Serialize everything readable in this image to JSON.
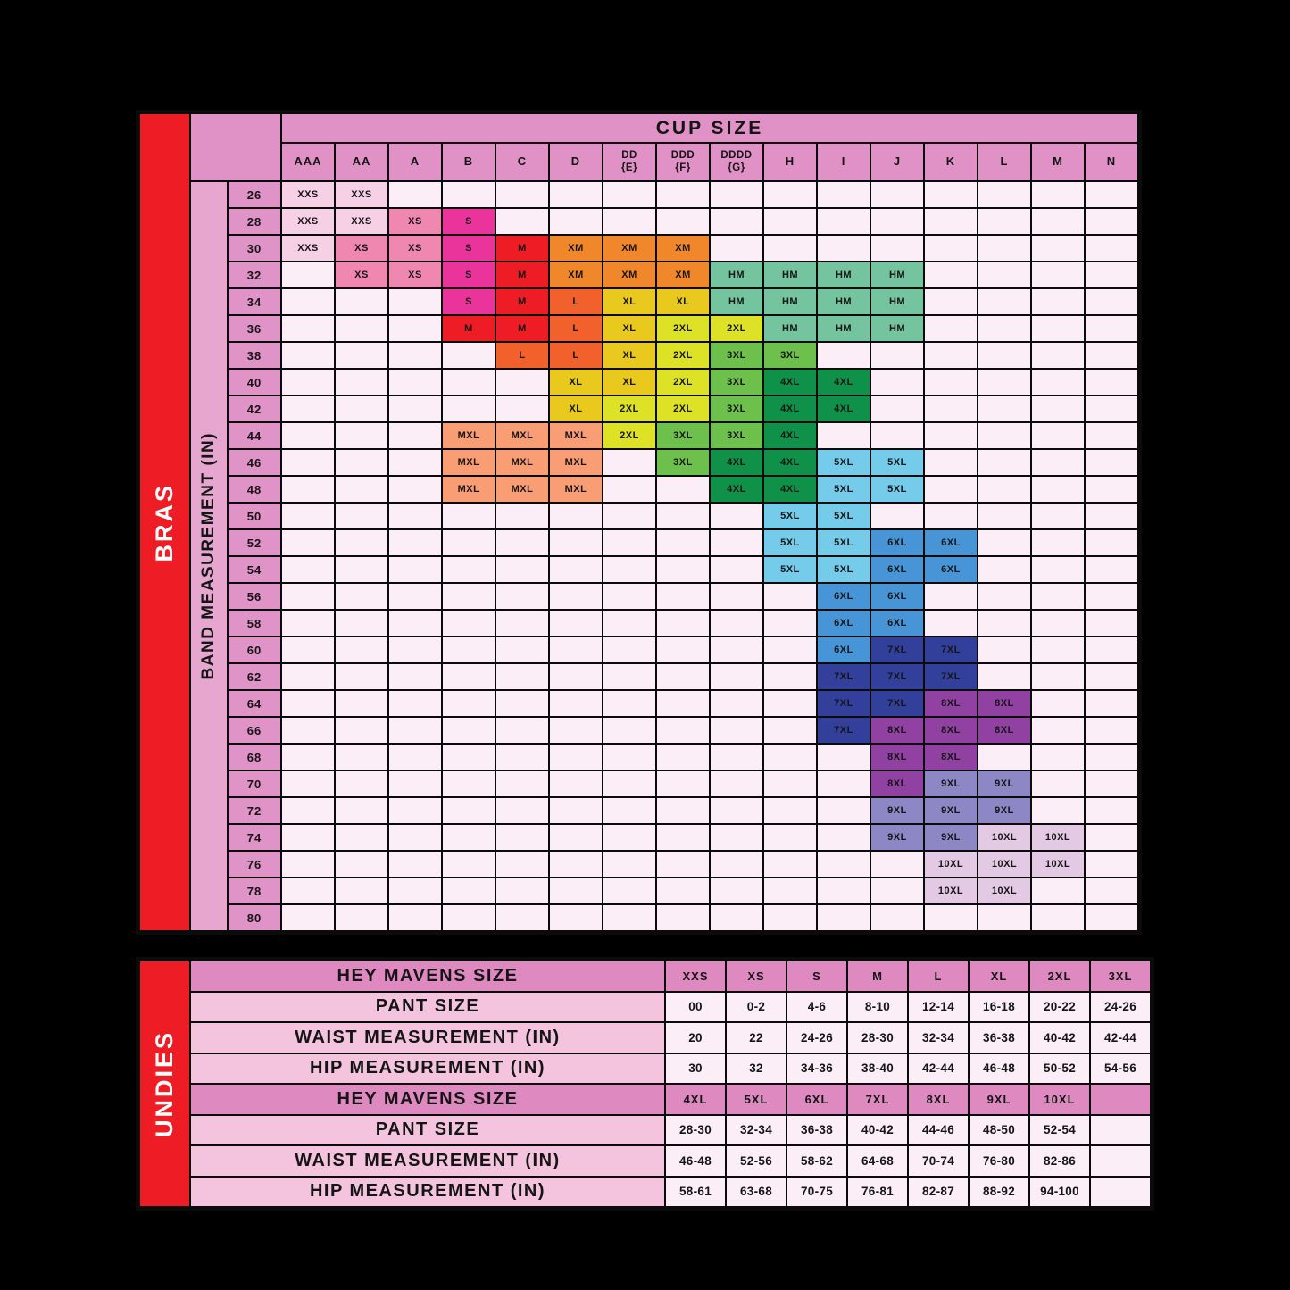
{
  "chart_data": [
    {
      "type": "table",
      "name": "bras-size-chart",
      "side_label": "BRAS",
      "row_axis_label": "BAND MEASUREMENT (IN)",
      "col_axis_label": "CUP SIZE",
      "columns": [
        "AAA",
        "AA",
        "A",
        "B",
        "C",
        "D",
        "DD\n{E}",
        "DDD\n{F}",
        "DDDD\n{G}",
        "H",
        "I",
        "J",
        "K",
        "L",
        "M",
        "N"
      ],
      "rows": [
        {
          "band": "26",
          "cells": [
            "XXS",
            "XXS",
            "",
            "",
            "",
            "",
            "",
            "",
            "",
            "",
            "",
            "",
            "",
            "",
            "",
            ""
          ]
        },
        {
          "band": "28",
          "cells": [
            "XXS",
            "XXS",
            "XS",
            "S",
            "",
            "",
            "",
            "",
            "",
            "",
            "",
            "",
            "",
            "",
            "",
            ""
          ]
        },
        {
          "band": "30",
          "cells": [
            "XXS",
            "XS",
            "XS",
            "S",
            "M",
            "XM",
            "XM",
            "XM",
            "",
            "",
            "",
            "",
            "",
            "",
            "",
            ""
          ]
        },
        {
          "band": "32",
          "cells": [
            "",
            "XS",
            "XS",
            "S",
            "M",
            "XM",
            "XM",
            "XM",
            "HM",
            "HM",
            "HM",
            "HM",
            "",
            "",
            "",
            ""
          ]
        },
        {
          "band": "34",
          "cells": [
            "",
            "",
            "",
            "S",
            "M",
            "L",
            "XL",
            "XL",
            "HM",
            "HM",
            "HM",
            "HM",
            "",
            "",
            "",
            ""
          ]
        },
        {
          "band": "36",
          "cells": [
            "",
            "",
            "",
            "M",
            "M",
            "L",
            "XL",
            "2XL",
            "2XL",
            "HM",
            "HM",
            "HM",
            "",
            "",
            "",
            ""
          ]
        },
        {
          "band": "38",
          "cells": [
            "",
            "",
            "",
            "",
            "L",
            "L",
            "XL",
            "2XL",
            "3XL",
            "3XL",
            "",
            "",
            "",
            "",
            "",
            ""
          ]
        },
        {
          "band": "40",
          "cells": [
            "",
            "",
            "",
            "",
            "",
            "XL",
            "XL",
            "2XL",
            "3XL",
            "4XL",
            "4XL",
            "",
            "",
            "",
            "",
            ""
          ]
        },
        {
          "band": "42",
          "cells": [
            "",
            "",
            "",
            "",
            "",
            "XL",
            "2XL",
            "2XL",
            "3XL",
            "4XL",
            "4XL",
            "",
            "",
            "",
            "",
            ""
          ]
        },
        {
          "band": "44",
          "cells": [
            "",
            "",
            "",
            "MXL",
            "MXL",
            "MXL",
            "2XL",
            "3XL",
            "3XL",
            "4XL",
            "",
            "",
            "",
            "",
            "",
            ""
          ]
        },
        {
          "band": "46",
          "cells": [
            "",
            "",
            "",
            "MXL",
            "MXL",
            "MXL",
            "",
            "3XL",
            "4XL",
            "4XL",
            "5XL",
            "5XL",
            "",
            "",
            "",
            ""
          ]
        },
        {
          "band": "48",
          "cells": [
            "",
            "",
            "",
            "MXL",
            "MXL",
            "MXL",
            "",
            "",
            "4XL",
            "4XL",
            "5XL",
            "5XL",
            "",
            "",
            "",
            ""
          ]
        },
        {
          "band": "50",
          "cells": [
            "",
            "",
            "",
            "",
            "",
            "",
            "",
            "",
            "",
            "5XL",
            "5XL",
            "",
            "",
            "",
            "",
            ""
          ]
        },
        {
          "band": "52",
          "cells": [
            "",
            "",
            "",
            "",
            "",
            "",
            "",
            "",
            "",
            "5XL",
            "5XL",
            "6XL",
            "6XL",
            "",
            "",
            ""
          ]
        },
        {
          "band": "54",
          "cells": [
            "",
            "",
            "",
            "",
            "",
            "",
            "",
            "",
            "",
            "5XL",
            "5XL",
            "6XL",
            "6XL",
            "",
            "",
            ""
          ]
        },
        {
          "band": "56",
          "cells": [
            "",
            "",
            "",
            "",
            "",
            "",
            "",
            "",
            "",
            "",
            "6XL",
            "6XL",
            "",
            "",
            "",
            ""
          ]
        },
        {
          "band": "58",
          "cells": [
            "",
            "",
            "",
            "",
            "",
            "",
            "",
            "",
            "",
            "",
            "6XL",
            "6XL",
            "",
            "",
            "",
            ""
          ]
        },
        {
          "band": "60",
          "cells": [
            "",
            "",
            "",
            "",
            "",
            "",
            "",
            "",
            "",
            "",
            "6XL",
            "7XL",
            "7XL",
            "",
            "",
            ""
          ]
        },
        {
          "band": "62",
          "cells": [
            "",
            "",
            "",
            "",
            "",
            "",
            "",
            "",
            "",
            "",
            "7XL",
            "7XL",
            "7XL",
            "",
            "",
            ""
          ]
        },
        {
          "band": "64",
          "cells": [
            "",
            "",
            "",
            "",
            "",
            "",
            "",
            "",
            "",
            "",
            "7XL",
            "7XL",
            "8XL",
            "8XL",
            "",
            ""
          ]
        },
        {
          "band": "66",
          "cells": [
            "",
            "",
            "",
            "",
            "",
            "",
            "",
            "",
            "",
            "",
            "7XL",
            "8XL",
            "8XL",
            "8XL",
            "",
            ""
          ]
        },
        {
          "band": "68",
          "cells": [
            "",
            "",
            "",
            "",
            "",
            "",
            "",
            "",
            "",
            "",
            "",
            "8XL",
            "8XL",
            "",
            "",
            ""
          ]
        },
        {
          "band": "70",
          "cells": [
            "",
            "",
            "",
            "",
            "",
            "",
            "",
            "",
            "",
            "",
            "",
            "8XL",
            "9XL",
            "9XL",
            "",
            ""
          ]
        },
        {
          "band": "72",
          "cells": [
            "",
            "",
            "",
            "",
            "",
            "",
            "",
            "",
            "",
            "",
            "",
            "9XL",
            "9XL",
            "9XL",
            "",
            ""
          ]
        },
        {
          "band": "74",
          "cells": [
            "",
            "",
            "",
            "",
            "",
            "",
            "",
            "",
            "",
            "",
            "",
            "9XL",
            "9XL",
            "10XL",
            "10XL",
            ""
          ]
        },
        {
          "band": "76",
          "cells": [
            "",
            "",
            "",
            "",
            "",
            "",
            "",
            "",
            "",
            "",
            "",
            "",
            "10XL",
            "10XL",
            "10XL",
            ""
          ]
        },
        {
          "band": "78",
          "cells": [
            "",
            "",
            "",
            "",
            "",
            "",
            "",
            "",
            "",
            "",
            "",
            "",
            "10XL",
            "10XL",
            "",
            ""
          ]
        },
        {
          "band": "80",
          "cells": [
            "",
            "",
            "",
            "",
            "",
            "",
            "",
            "",
            "",
            "",
            "",
            "",
            "",
            "",
            "",
            ""
          ]
        }
      ]
    },
    {
      "type": "table",
      "name": "undies-size-chart",
      "side_label": "UNDIES",
      "rows": [
        {
          "label": "HEY MAVENS SIZE",
          "header": true,
          "cells": [
            "XXS",
            "XS",
            "S",
            "M",
            "L",
            "XL",
            "2XL",
            "3XL"
          ]
        },
        {
          "label": "PANT SIZE",
          "header": false,
          "cells": [
            "00",
            "0-2",
            "4-6",
            "8-10",
            "12-14",
            "16-18",
            "20-22",
            "24-26"
          ]
        },
        {
          "label": "WAIST MEASUREMENT (IN)",
          "header": false,
          "cells": [
            "20",
            "22",
            "24-26",
            "28-30",
            "32-34",
            "36-38",
            "40-42",
            "42-44"
          ]
        },
        {
          "label": "HIP MEASUREMENT (IN)",
          "header": false,
          "cells": [
            "30",
            "32",
            "34-36",
            "38-40",
            "42-44",
            "46-48",
            "50-52",
            "54-56"
          ]
        },
        {
          "label": "HEY MAVENS SIZE",
          "header": true,
          "cells": [
            "4XL",
            "5XL",
            "6XL",
            "7XL",
            "8XL",
            "9XL",
            "10XL",
            ""
          ]
        },
        {
          "label": "PANT SIZE",
          "header": false,
          "cells": [
            "28-30",
            "32-34",
            "36-38",
            "40-42",
            "44-46",
            "48-50",
            "52-54",
            ""
          ]
        },
        {
          "label": "WAIST MEASUREMENT (IN)",
          "header": false,
          "cells": [
            "46-48",
            "52-56",
            "58-62",
            "64-68",
            "70-74",
            "76-80",
            "82-86",
            ""
          ]
        },
        {
          "label": "HIP MEASUREMENT (IN)",
          "header": false,
          "cells": [
            "58-61",
            "63-68",
            "70-75",
            "76-81",
            "82-87",
            "88-92",
            "94-100",
            ""
          ]
        }
      ]
    }
  ],
  "legend_colors": {
    "XXS": "#f6d0e5",
    "XS": "#ef87b1",
    "S": "#eb339c",
    "M": "#ee1c25",
    "XM": "#f1872b",
    "L": "#f2612b",
    "XL": "#eac91e",
    "2XL": "#dde226",
    "HM": "#74c59f",
    "3XL": "#6ec04c",
    "4XL": "#0f9149",
    "MXL": "#f99d75",
    "5XL": "#74cbea",
    "6XL": "#4795d7",
    "7XL": "#32409c",
    "8XL": "#9041a1",
    "9XL": "#8d87c6",
    "10XL": "#e4c9e4"
  },
  "palette": {
    "accent_red": "#ee1c25",
    "header_pink": "#e091c5",
    "axis_pink": "#e6a6d0",
    "row_header_pink": "#df93c6",
    "undies_header_pink": "#de89c0",
    "undies_label_pink": "#f4c3de",
    "empty_cell": "#fbeef6",
    "background": "#000000"
  }
}
